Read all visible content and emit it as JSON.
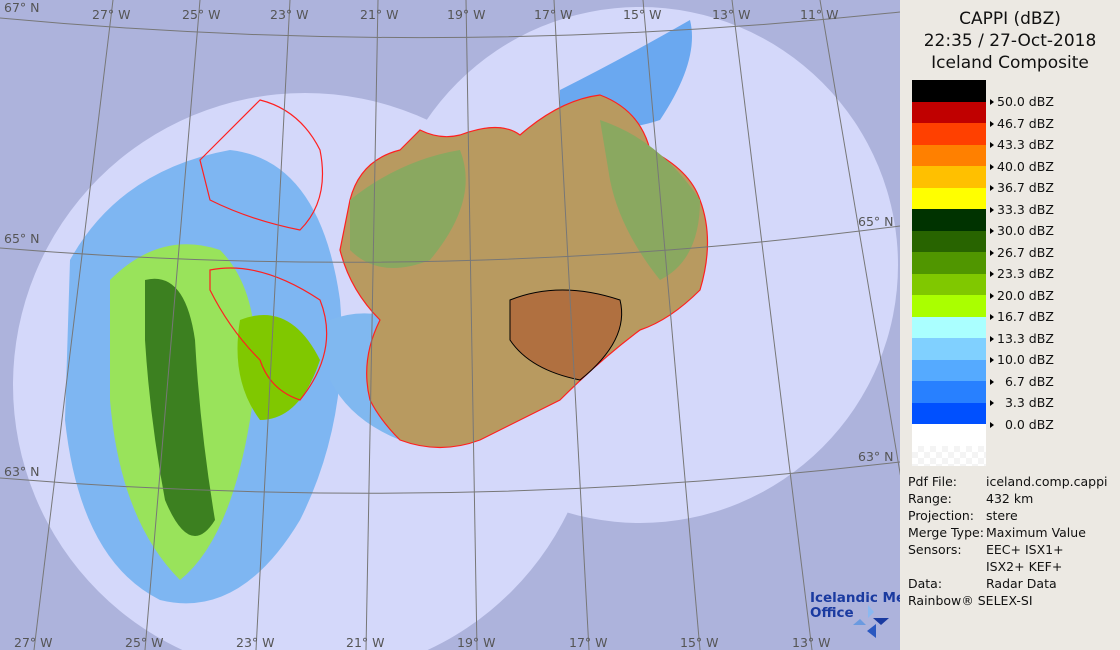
{
  "header": {
    "product": "CAPPI (dBZ)",
    "datetime": "22:35 / 27-Oct-2018",
    "site": "Iceland Composite"
  },
  "legend": [
    {
      "color": "#000000",
      "label": "50.0 dBZ"
    },
    {
      "color": "#c00000",
      "label": "46.7 dBZ"
    },
    {
      "color": "#ff4000",
      "label": "43.3 dBZ"
    },
    {
      "color": "#ff8000",
      "label": "40.0 dBZ"
    },
    {
      "color": "#ffc000",
      "label": "36.7 dBZ"
    },
    {
      "color": "#ffff00",
      "label": "33.3 dBZ"
    },
    {
      "color": "#003300",
      "label": "30.0 dBZ"
    },
    {
      "color": "#286400",
      "label": "26.7 dBZ"
    },
    {
      "color": "#509600",
      "label": "23.3 dBZ"
    },
    {
      "color": "#80c800",
      "label": "20.0 dBZ"
    },
    {
      "color": "#aaff00",
      "label": "16.7 dBZ"
    },
    {
      "color": "#aaffff",
      "label": "13.3 dBZ"
    },
    {
      "color": "#80d0ff",
      "label": "10.0 dBZ"
    },
    {
      "color": "#55aaff",
      "label": "  6.7 dBZ"
    },
    {
      "color": "#2880ff",
      "label": "  3.3 dBZ"
    },
    {
      "color": "#0050ff",
      "label": "  0.0 dBZ"
    },
    {
      "color": "#ffffff",
      "label": ""
    }
  ],
  "info": [
    {
      "key": "Pdf File:",
      "value": "iceland.comp.cappi"
    },
    {
      "key": "Range:",
      "value": "432 km"
    },
    {
      "key": "Projection:",
      "value": "stere"
    },
    {
      "key": "Merge Type:",
      "value": "Maximum Value"
    },
    {
      "key": "Sensors:",
      "value": "EEC+ ISX1+"
    },
    {
      "key": "",
      "value": "ISX2+ KEF+"
    },
    {
      "key": "Data:",
      "value": "Radar Data"
    }
  ],
  "footer": "Rainbow® SELEX-SI",
  "logo": {
    "line1": "Icelandic Met",
    "line2": "Office"
  },
  "graticule": {
    "top": [
      "27° W",
      "25° W",
      "23° W",
      "21° W",
      "19° W",
      "17° W",
      "15° W",
      "13° W",
      "11° W"
    ],
    "bottom": [
      "27° W",
      "25° W",
      "23° W",
      "21° W",
      "19° W",
      "17° W",
      "15° W",
      "13° W"
    ],
    "left": [
      "67° N",
      "65° N",
      "63° N"
    ],
    "right": [
      "65° N",
      "63° N"
    ]
  },
  "colors": {
    "outside": "#adb3dc",
    "coverage": "#d4d8fa",
    "land": "#b8a068",
    "coast": "#ff2020"
  }
}
